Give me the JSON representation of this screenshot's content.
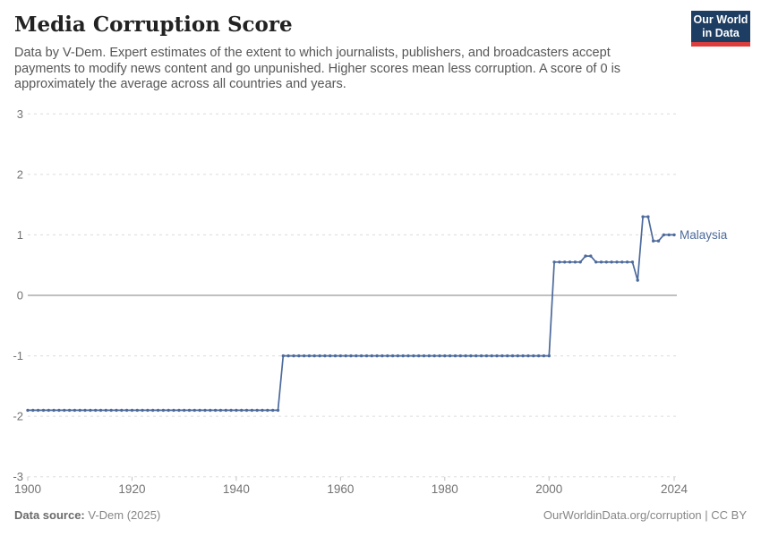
{
  "header": {
    "title": "Media Corruption Score",
    "subtitle": "Data by V-Dem. Expert estimates of the extent to which journalists, publishers, and broadcasters accept payments to modify news content and go unpunished. Higher scores mean less corruption. A score of 0 is approximately the average across all countries and years."
  },
  "logo": {
    "line1": "Our World",
    "line2": "in Data",
    "bg_color": "#1d3d63",
    "accent_color": "#dc3e3e"
  },
  "chart_data": {
    "type": "line",
    "title": "Media Corruption Score",
    "xlabel": "",
    "ylabel": "",
    "xlim": [
      1900,
      2024
    ],
    "ylim": [
      -3,
      3
    ],
    "x_ticks": [
      1900,
      1920,
      1940,
      1960,
      1980,
      2000,
      2024
    ],
    "y_ticks": [
      -3,
      -2,
      -1,
      0,
      1,
      2,
      3
    ],
    "grid": "horizontal dashed, solid zero line",
    "legend_position": "end-of-line label",
    "colors": {
      "line": "#4C6A9C",
      "grid": "#dcdcdc",
      "zero_line": "#9a9a9a",
      "tick_label": "#737373",
      "axis_tick": "#c4c4c4"
    },
    "series": [
      {
        "name": "Malaysia",
        "color": "#4C6A9C",
        "markers": "dot per year",
        "segments": [
          {
            "from": 1900,
            "to": 1948,
            "value": -1.9
          },
          {
            "from": 1949,
            "to": 2000,
            "value": -1.0
          },
          {
            "from": 2001,
            "to": 2006,
            "value": 0.55
          },
          {
            "from": 2007,
            "to": 2008,
            "value": 0.65
          },
          {
            "from": 2009,
            "to": 2016,
            "value": 0.55
          },
          {
            "from": 2017,
            "to": 2017,
            "value": 0.25
          },
          {
            "from": 2018,
            "to": 2019,
            "value": 1.3
          },
          {
            "from": 2020,
            "to": 2021,
            "value": 0.9
          },
          {
            "from": 2022,
            "to": 2024,
            "value": 1.0
          }
        ]
      }
    ]
  },
  "footer": {
    "source_label": "Data source:",
    "source_value": "V-Dem (2025)",
    "link_text": "OurWorldinData.org/corruption | CC BY"
  }
}
